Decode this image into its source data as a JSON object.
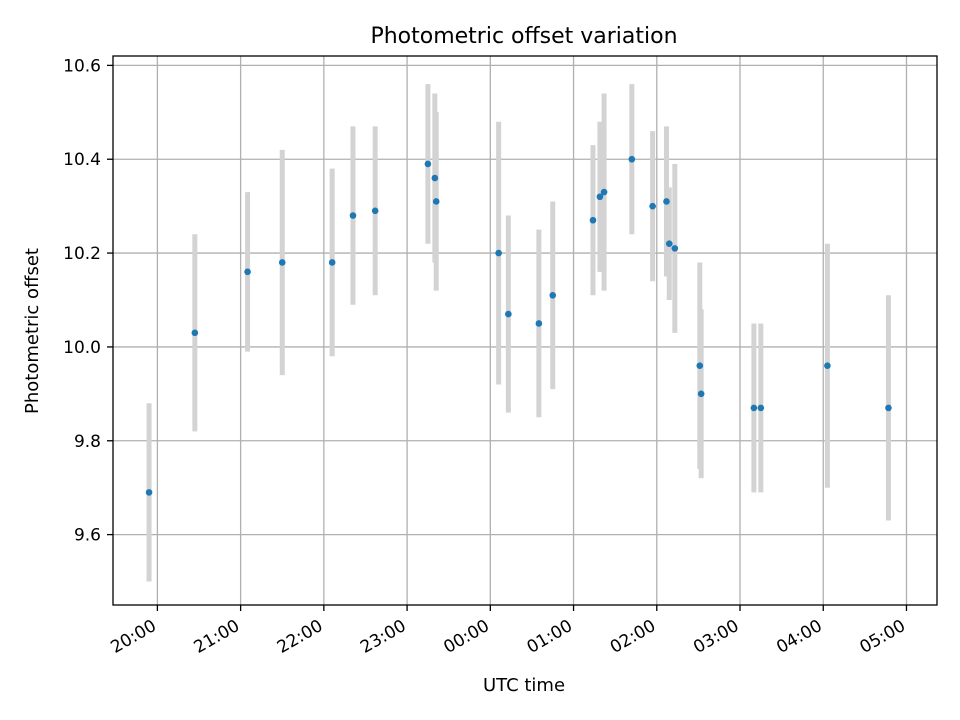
{
  "chart_data": {
    "type": "scatter",
    "title": "Photometric offset variation",
    "xlabel": "UTC time",
    "ylabel": "Photometric offset",
    "x_axis": {
      "type": "time",
      "range": [
        "19:28",
        "05:22"
      ],
      "ticks": [
        "20:00",
        "21:00",
        "22:00",
        "23:00",
        "00:00",
        "01:00",
        "02:00",
        "03:00",
        "04:00",
        "05:00"
      ]
    },
    "y_axis": {
      "range": [
        9.45,
        10.62
      ],
      "ticks": [
        "9.6",
        "9.8",
        "10.0",
        "10.2",
        "10.4",
        "10.6"
      ]
    },
    "grid": true,
    "colors": {
      "point": "#1f77b4",
      "errorbar": "#d3d3d3",
      "grid": "#b0b0b0"
    },
    "points": [
      {
        "x": "19:54",
        "y": 9.69,
        "yerr": 0.19
      },
      {
        "x": "20:27",
        "y": 10.03,
        "yerr": 0.21
      },
      {
        "x": "21:05",
        "y": 10.16,
        "yerr": 0.17
      },
      {
        "x": "21:30",
        "y": 10.18,
        "yerr": 0.24
      },
      {
        "x": "22:06",
        "y": 10.18,
        "yerr": 0.2
      },
      {
        "x": "22:21",
        "y": 10.28,
        "yerr": 0.19
      },
      {
        "x": "22:37",
        "y": 10.29,
        "yerr": 0.18
      },
      {
        "x": "23:15",
        "y": 10.39,
        "yerr": 0.17
      },
      {
        "x": "23:20",
        "y": 10.36,
        "yerr": 0.18
      },
      {
        "x": "23:21",
        "y": 10.31,
        "yerr": 0.19
      },
      {
        "x": "00:06",
        "y": 10.2,
        "yerr": 0.28
      },
      {
        "x": "00:13",
        "y": 10.07,
        "yerr": 0.21
      },
      {
        "x": "00:35",
        "y": 10.05,
        "yerr": 0.2
      },
      {
        "x": "00:45",
        "y": 10.11,
        "yerr": 0.2
      },
      {
        "x": "01:14",
        "y": 10.27,
        "yerr": 0.16
      },
      {
        "x": "01:19",
        "y": 10.32,
        "yerr": 0.16
      },
      {
        "x": "01:22",
        "y": 10.33,
        "yerr": 0.21
      },
      {
        "x": "01:42",
        "y": 10.4,
        "yerr": 0.16
      },
      {
        "x": "01:57",
        "y": 10.3,
        "yerr": 0.16
      },
      {
        "x": "02:07",
        "y": 10.31,
        "yerr": 0.16
      },
      {
        "x": "02:09",
        "y": 10.22,
        "yerr": 0.12
      },
      {
        "x": "02:13",
        "y": 10.21,
        "yerr": 0.18
      },
      {
        "x": "02:31",
        "y": 9.96,
        "yerr": 0.22
      },
      {
        "x": "02:32",
        "y": 9.9,
        "yerr": 0.18
      },
      {
        "x": "03:10",
        "y": 9.87,
        "yerr": 0.18
      },
      {
        "x": "03:15",
        "y": 9.87,
        "yerr": 0.18
      },
      {
        "x": "04:03",
        "y": 9.96,
        "yerr": 0.26
      },
      {
        "x": "04:47",
        "y": 9.87,
        "yerr": 0.24
      }
    ]
  }
}
